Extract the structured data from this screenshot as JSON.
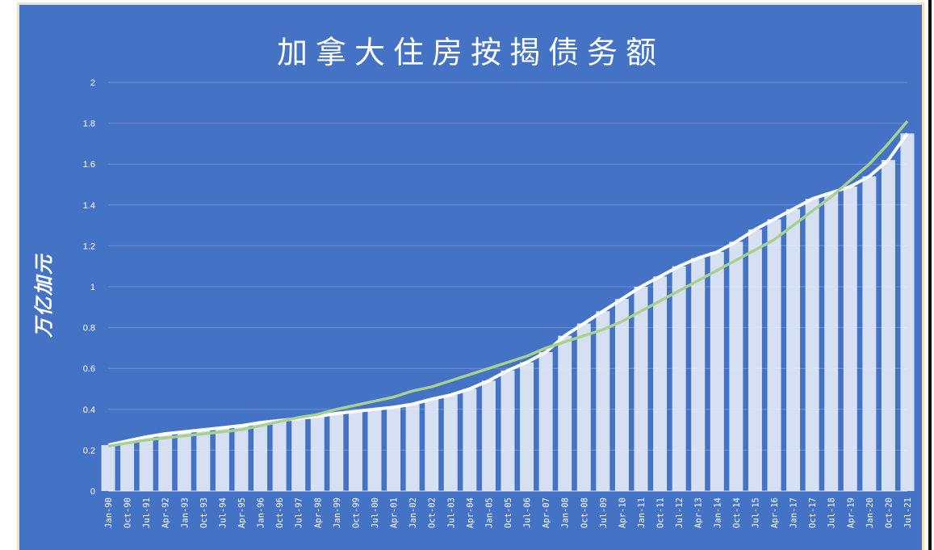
{
  "chart_data": {
    "type": "bar",
    "title": "加拿大住房按揭债务额",
    "ylabel": "万亿加元",
    "ylim": [
      0,
      2
    ],
    "yticks": [
      "0",
      "0.2",
      "0.4",
      "0.6",
      "0.8",
      "1",
      "1.2",
      "1.4",
      "1.6",
      "1.8",
      "2"
    ],
    "x_tick_labels": [
      "Jan-90",
      "Oct-90",
      "Jul-91",
      "Apr-92",
      "Jan-93",
      "Oct-93",
      "Jul-94",
      "Apr-95",
      "Jan-96",
      "Oct-96",
      "Jul-97",
      "Apr-98",
      "Jan-99",
      "Oct-99",
      "Jul-00",
      "Apr-01",
      "Jan-02",
      "Oct-02",
      "Jul-03",
      "Apr-04",
      "Jan-05",
      "Oct-05",
      "Jul-06",
      "Apr-07",
      "Jan-08",
      "Oct-08",
      "Jul-09",
      "Apr-10",
      "Jan-11",
      "Oct-11",
      "Jul-12",
      "Apr-13",
      "Jan-14",
      "Oct-14",
      "Jul-15",
      "Apr-16",
      "Jan-17",
      "Oct-17",
      "Jul-18",
      "Apr-19",
      "Jan-20",
      "Oct-20",
      "Jul-21"
    ],
    "grid": true,
    "legend": "none",
    "series": [
      {
        "kind": "bar",
        "color": "#ffffff",
        "values": [
          0.225,
          0.245,
          0.265,
          0.28,
          0.29,
          0.3,
          0.31,
          0.32,
          0.335,
          0.345,
          0.355,
          0.365,
          0.38,
          0.39,
          0.4,
          0.41,
          0.425,
          0.45,
          0.47,
          0.5,
          0.54,
          0.59,
          0.63,
          0.68,
          0.76,
          0.82,
          0.88,
          0.94,
          1.0,
          1.05,
          1.1,
          1.14,
          1.17,
          1.22,
          1.28,
          1.33,
          1.38,
          1.43,
          1.46,
          1.49,
          1.54,
          1.62,
          1.75
        ]
      },
      {
        "kind": "trend",
        "color": "#a9d18e",
        "values": [
          0.22,
          0.235,
          0.25,
          0.26,
          0.27,
          0.28,
          0.29,
          0.3,
          0.32,
          0.34,
          0.36,
          0.375,
          0.4,
          0.42,
          0.44,
          0.46,
          0.49,
          0.51,
          0.54,
          0.57,
          0.6,
          0.63,
          0.66,
          0.7,
          0.73,
          0.76,
          0.79,
          0.83,
          0.88,
          0.93,
          0.98,
          1.03,
          1.08,
          1.13,
          1.18,
          1.23,
          1.3,
          1.37,
          1.44,
          1.52,
          1.6,
          1.7,
          1.81
        ]
      }
    ]
  },
  "colors": {
    "background": "#4472c4",
    "gridline": "#6b8fd4",
    "bar": "#ffffff",
    "trendline": "#a9d18e"
  }
}
